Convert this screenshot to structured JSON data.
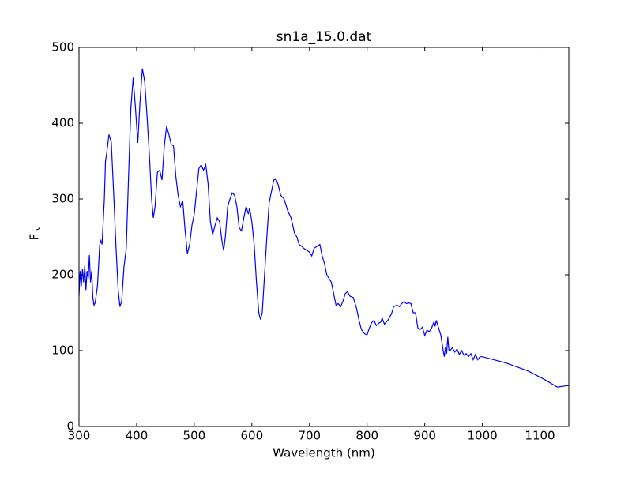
{
  "chart_data": {
    "type": "line",
    "title": "sn1a_15.0.dat",
    "xlabel": "Wavelength (nm)",
    "ylabel": "F",
    "ylabel_subscript": "ν",
    "x": [
      300,
      302,
      304,
      306,
      308,
      310,
      312,
      314,
      316,
      318,
      320,
      322,
      324,
      326,
      328,
      332,
      336,
      338,
      340,
      344,
      346,
      348,
      352,
      356,
      360,
      364,
      368,
      371,
      374,
      378,
      382,
      386,
      390,
      394,
      398,
      402,
      406,
      410,
      414,
      418,
      422,
      426,
      429,
      432,
      436,
      440,
      444,
      448,
      452,
      456,
      460,
      464,
      468,
      472,
      476,
      480,
      484,
      488,
      492,
      496,
      500,
      504,
      508,
      512,
      516,
      520,
      524,
      528,
      532,
      536,
      540,
      544,
      548,
      551,
      554,
      558,
      562,
      566,
      570,
      574,
      578,
      582,
      586,
      590,
      594,
      596,
      600,
      604,
      608,
      612,
      615,
      618,
      622,
      626,
      630,
      634,
      638,
      642,
      646,
      650,
      656,
      662,
      668,
      674,
      678,
      682,
      686,
      690,
      696,
      700,
      704,
      708,
      714,
      718,
      722,
      726,
      730,
      734,
      738,
      742,
      746,
      750,
      754,
      758,
      762,
      766,
      770,
      776,
      782,
      786,
      790,
      796,
      800,
      804,
      808,
      812,
      816,
      820,
      824,
      826,
      830,
      836,
      842,
      846,
      852,
      856,
      860,
      864,
      868,
      872,
      876,
      880,
      884,
      888,
      892,
      896,
      900,
      904,
      908,
      912,
      916,
      918,
      920,
      924,
      928,
      932,
      934,
      936,
      938,
      940,
      942,
      944,
      948,
      952,
      956,
      960,
      964,
      968,
      972,
      976,
      980,
      984,
      988,
      992,
      996,
      1000,
      1040,
      1080,
      1110,
      1130,
      1150
    ],
    "series": [
      {
        "name": "sn1a_15.0.dat",
        "color": "#0000ff",
        "values": [
          172,
          205,
          185,
          208,
          190,
          212,
          180,
          205,
          195,
          226,
          190,
          205,
          170,
          160,
          163,
          185,
          240,
          245,
          240,
          300,
          350,
          360,
          385,
          375,
          310,
          240,
          180,
          158,
          165,
          210,
          235,
          330,
          420,
          460,
          420,
          374,
          430,
          472,
          455,
          410,
          360,
          300,
          275,
          290,
          335,
          338,
          325,
          370,
          396,
          385,
          372,
          370,
          330,
          305,
          290,
          298,
          260,
          228,
          240,
          265,
          280,
          310,
          340,
          345,
          338,
          345,
          320,
          270,
          253,
          265,
          275,
          270,
          245,
          232,
          250,
          290,
          300,
          308,
          305,
          290,
          262,
          258,
          275,
          290,
          280,
          288,
          270,
          240,
          190,
          150,
          141,
          150,
          200,
          250,
          295,
          310,
          325,
          326,
          318,
          305,
          300,
          285,
          275,
          255,
          250,
          240,
          238,
          235,
          232,
          230,
          225,
          235,
          238,
          240,
          225,
          215,
          200,
          195,
          190,
          175,
          160,
          162,
          158,
          165,
          175,
          178,
          172,
          170,
          155,
          140,
          128,
          122,
          121,
          130,
          137,
          140,
          133,
          136,
          138,
          143,
          135,
          140,
          148,
          158,
          160,
          158,
          162,
          165,
          162,
          163,
          162,
          150,
          150,
          130,
          128,
          131,
          120,
          127,
          125,
          130,
          138,
          132,
          140,
          130,
          120,
          100,
          92,
          105,
          96,
          118,
          100,
          100,
          104,
          98,
          102,
          95,
          100,
          94,
          96,
          92,
          96,
          88,
          95,
          88,
          92,
          92,
          84,
          73,
          61,
          52,
          54
        ]
      }
    ],
    "xlim": [
      300,
      1150
    ],
    "ylim": [
      0,
      500
    ],
    "xticks": [
      300,
      400,
      500,
      600,
      700,
      800,
      900,
      1000,
      1100
    ],
    "yticks": [
      0,
      100,
      200,
      300,
      400,
      500
    ]
  }
}
